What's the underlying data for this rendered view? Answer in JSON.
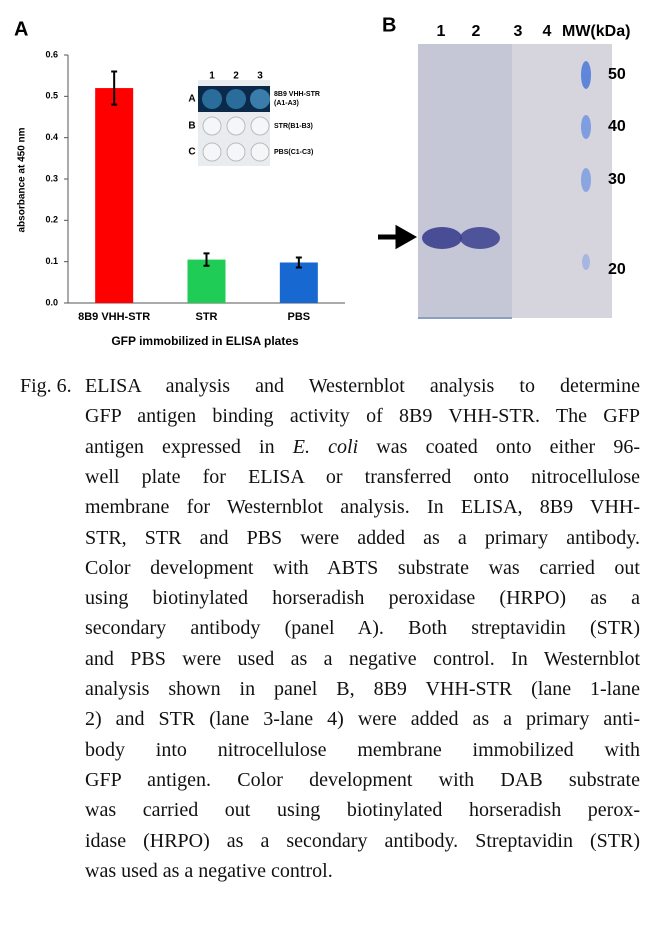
{
  "chart_data": {
    "type": "bar",
    "panel": "A",
    "ylabel": "absorbance at 450 nm",
    "xlabel": "GFP immobilized in ELISA plates",
    "categories": [
      "8B9 VHH-STR",
      "STR",
      "PBS"
    ],
    "values": [
      0.52,
      0.105,
      0.098
    ],
    "errors": [
      0.04,
      0.015,
      0.012
    ],
    "colors": [
      "#ff0000",
      "#1fcc55",
      "#1768d0"
    ],
    "ylim": [
      0,
      0.6
    ],
    "yticks": [
      {
        "value": 0,
        "label": "0.0"
      },
      0.1,
      0.2,
      0.3,
      0.4,
      0.5,
      0.6
    ],
    "inset": {
      "columns": [
        "1",
        "2",
        "3"
      ],
      "rows": [
        "A",
        "B",
        "C"
      ],
      "row_labels": [
        "8B9 VHH-STR",
        "(A1-A3)",
        "STR(B1-B3)",
        "PBS(C1-C3)"
      ]
    }
  },
  "blot": {
    "panel": "B",
    "lanes": [
      "1",
      "2",
      "3",
      "4",
      "MW(kDa)"
    ],
    "markers": [
      "50",
      "40",
      "30",
      "20"
    ]
  },
  "caption": {
    "label": "Fig. 6.",
    "lines": [
      "ELISA analysis and Westernblot analysis to determine",
      "GFP antigen binding activity of 8B9 VHH-STR. The GFP",
      [
        "antigen expressed in ",
        "E. coli",
        " was coated onto either 96-"
      ],
      "well plate for ELISA or transferred onto nitrocellulose",
      "membrane for Westernblot analysis. In ELISA, 8B9 VHH-",
      "STR, STR and PBS were added as a primary antibody.",
      "Color development with ABTS substrate was carried out",
      "using biotinylated horseradish peroxidase (HRPO) as a",
      "secondary antibody (panel A). Both streptavidin (STR)",
      "and PBS were used as a negative control. In Westernblot",
      "analysis shown in panel B, 8B9 VHH-STR (lane 1-lane",
      "2) and STR (lane 3-lane 4) were added as a primary anti-",
      "body into nitrocellulose membrane immobilized with",
      "GFP antigen. Color development with DAB substrate",
      "was carried out using biotinylated horseradish perox-",
      "idase (HRPO) as a secondary antibody. Streptavidin (STR)",
      "was used as a negative control."
    ]
  }
}
